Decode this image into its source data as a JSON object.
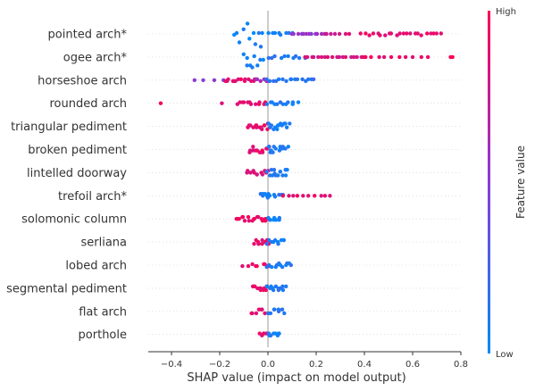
{
  "chart_data": {
    "type": "scatter",
    "subtype": "shap-beeswarm",
    "xlabel": "SHAP value (impact on model output)",
    "xlim": [
      -0.5,
      0.82
    ],
    "xticks": [
      -0.4,
      -0.2,
      0.0,
      0.2,
      0.4,
      0.6,
      0.8
    ],
    "xtick_labels": [
      "−0.4",
      "−0.2",
      "0.0",
      "0.2",
      "0.4",
      "0.6",
      "0.8"
    ],
    "grid": false,
    "colorbar": {
      "title": "Feature value",
      "high_label": "High",
      "low_label": "Low",
      "high_color": "#ff0052",
      "low_color": "#008bfb"
    },
    "zero_line_color": "#999999",
    "features": [
      {
        "name": "pointed arch*",
        "segments": [
          [
            -0.14,
            -0.02,
            0.05,
            10,
            12
          ],
          [
            0.0,
            0.1,
            0.1,
            8,
            2
          ],
          [
            0.1,
            0.23,
            0.55,
            12,
            1
          ],
          [
            0.24,
            0.34,
            0.8,
            6,
            1
          ],
          [
            0.39,
            0.72,
            0.9,
            22,
            1.5
          ]
        ]
      },
      {
        "name": "ogee arch*",
        "segments": [
          [
            -0.1,
            -0.02,
            0.05,
            10,
            12
          ],
          [
            0.0,
            0.15,
            0.15,
            10,
            2
          ],
          [
            0.15,
            0.4,
            0.85,
            18,
            1
          ],
          [
            0.4,
            0.66,
            0.9,
            10,
            1
          ],
          [
            0.76,
            0.77,
            0.95,
            2,
            1
          ]
        ]
      },
      {
        "name": "horseshoe arch",
        "segments": [
          [
            -0.31,
            -0.18,
            0.5,
            4,
            1
          ],
          [
            -0.18,
            -0.05,
            0.9,
            14,
            2
          ],
          [
            -0.05,
            0.0,
            0.6,
            6,
            2
          ],
          [
            0.0,
            0.19,
            0.15,
            16,
            2
          ]
        ]
      },
      {
        "name": "rounded arch",
        "segments": [
          [
            -0.44,
            -0.43,
            0.95,
            1,
            1
          ],
          [
            -0.19,
            -0.18,
            0.9,
            1,
            1
          ],
          [
            -0.13,
            -0.01,
            0.9,
            12,
            2
          ],
          [
            0.0,
            0.12,
            0.1,
            12,
            2
          ]
        ]
      },
      {
        "name": "triangular pediment",
        "segments": [
          [
            -0.08,
            0.0,
            0.9,
            14,
            4
          ],
          [
            0.0,
            0.09,
            0.1,
            14,
            4
          ]
        ]
      },
      {
        "name": "broken pediment",
        "segments": [
          [
            -0.08,
            0.0,
            0.9,
            14,
            4
          ],
          [
            0.0,
            0.08,
            0.1,
            14,
            4
          ]
        ]
      },
      {
        "name": "lintelled doorway",
        "segments": [
          [
            -0.09,
            0.0,
            0.85,
            12,
            3
          ],
          [
            0.0,
            0.08,
            0.1,
            14,
            4
          ]
        ]
      },
      {
        "name": "trefoil arch*",
        "segments": [
          [
            -0.03,
            0.01,
            0.1,
            8,
            3
          ],
          [
            0.01,
            0.06,
            0.1,
            6,
            2
          ],
          [
            0.06,
            0.26,
            0.9,
            10,
            1
          ]
        ]
      },
      {
        "name": "solomonic column",
        "segments": [
          [
            -0.13,
            0.0,
            0.9,
            18,
            3
          ],
          [
            0.0,
            0.05,
            0.1,
            8,
            2
          ]
        ]
      },
      {
        "name": "serliana",
        "segments": [
          [
            -0.06,
            0.0,
            0.9,
            10,
            3
          ],
          [
            0.0,
            0.07,
            0.1,
            10,
            3
          ]
        ]
      },
      {
        "name": "lobed arch",
        "segments": [
          [
            -0.1,
            -0.04,
            0.9,
            5,
            2
          ],
          [
            -0.02,
            0.0,
            0.9,
            4,
            2
          ],
          [
            0.0,
            0.1,
            0.1,
            12,
            3
          ]
        ]
      },
      {
        "name": "segmental pediment",
        "segments": [
          [
            -0.06,
            0.0,
            0.9,
            12,
            3
          ],
          [
            0.0,
            0.07,
            0.1,
            12,
            3
          ]
        ]
      },
      {
        "name": "flat arch",
        "segments": [
          [
            -0.07,
            0.0,
            0.9,
            8,
            3
          ],
          [
            0.0,
            0.07,
            0.1,
            8,
            3
          ]
        ]
      },
      {
        "name": "porthole",
        "segments": [
          [
            -0.03,
            0.0,
            0.9,
            5,
            2
          ],
          [
            0.0,
            0.05,
            0.1,
            8,
            2
          ]
        ]
      }
    ],
    "segment_format": [
      "x_start",
      "x_end",
      "feature_value_0to1",
      "point_count",
      "stack_rows"
    ]
  }
}
